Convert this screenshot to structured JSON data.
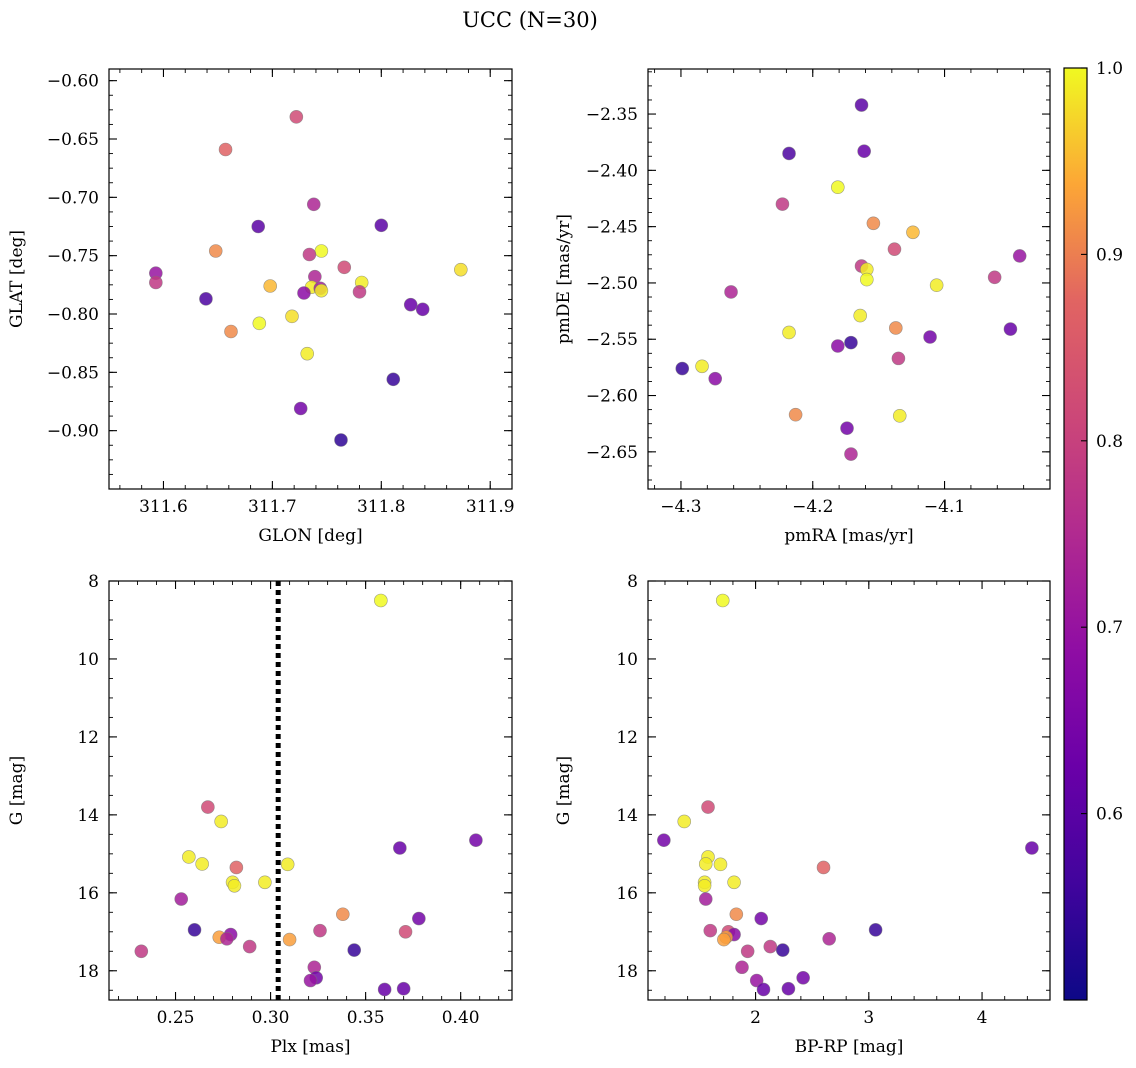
{
  "suptitle": "UCC (N=30)",
  "colorbar": {
    "colormap": "plasma",
    "range": [
      0.5,
      1.0
    ],
    "ticks": [
      "0.6",
      "0.7",
      "0.8",
      "0.9",
      "1.0"
    ]
  },
  "chart_data": [
    {
      "type": "scatter",
      "xlabel": "GLON [deg]",
      "ylabel": "GLAT [deg]",
      "xlim": [
        311.55,
        311.92
      ],
      "ylim": [
        -0.95,
        -0.59
      ],
      "y_inverted": false,
      "xticks": [
        "311.6",
        "311.7",
        "311.8",
        "311.9"
      ],
      "yticks": [
        "−0.60",
        "−0.65",
        "−0.70",
        "−0.75",
        "−0.80",
        "−0.85",
        "−0.90"
      ],
      "points": [
        {
          "x": 311.722,
          "y": -0.631,
          "c": 0.82
        },
        {
          "x": 311.657,
          "y": -0.659,
          "c": 0.87
        },
        {
          "x": 311.738,
          "y": -0.706,
          "c": 0.74
        },
        {
          "x": 311.687,
          "y": -0.725,
          "c": 0.6
        },
        {
          "x": 311.8,
          "y": -0.724,
          "c": 0.6
        },
        {
          "x": 311.648,
          "y": -0.746,
          "c": 0.91
        },
        {
          "x": 311.745,
          "y": -0.746,
          "c": 1.0
        },
        {
          "x": 311.734,
          "y": -0.749,
          "c": 0.78
        },
        {
          "x": 311.873,
          "y": -0.762,
          "c": 0.98
        },
        {
          "x": 311.766,
          "y": -0.76,
          "c": 0.82
        },
        {
          "x": 311.593,
          "y": -0.765,
          "c": 0.7
        },
        {
          "x": 311.739,
          "y": -0.768,
          "c": 0.74
        },
        {
          "x": 311.593,
          "y": -0.773,
          "c": 0.78
        },
        {
          "x": 311.782,
          "y": -0.773,
          "c": 0.99
        },
        {
          "x": 311.698,
          "y": -0.776,
          "c": 0.95
        },
        {
          "x": 311.736,
          "y": -0.777,
          "c": 0.99
        },
        {
          "x": 311.744,
          "y": -0.778,
          "c": 0.72
        },
        {
          "x": 311.745,
          "y": -0.78,
          "c": 0.99
        },
        {
          "x": 311.729,
          "y": -0.782,
          "c": 0.68
        },
        {
          "x": 311.78,
          "y": -0.781,
          "c": 0.78
        },
        {
          "x": 311.639,
          "y": -0.787,
          "c": 0.58
        },
        {
          "x": 311.827,
          "y": -0.792,
          "c": 0.62
        },
        {
          "x": 311.838,
          "y": -0.796,
          "c": 0.62
        },
        {
          "x": 311.718,
          "y": -0.802,
          "c": 0.98
        },
        {
          "x": 311.688,
          "y": -0.808,
          "c": 1.0
        },
        {
          "x": 311.662,
          "y": -0.815,
          "c": 0.91
        },
        {
          "x": 311.732,
          "y": -0.834,
          "c": 0.99
        },
        {
          "x": 311.811,
          "y": -0.856,
          "c": 0.55
        },
        {
          "x": 311.726,
          "y": -0.881,
          "c": 0.64
        },
        {
          "x": 311.763,
          "y": -0.908,
          "c": 0.54
        }
      ]
    },
    {
      "type": "scatter",
      "xlabel": "pmRA [mas/yr]",
      "ylabel": "pmDE [mas/yr]",
      "xlim": [
        -4.325,
        -4.02
      ],
      "ylim": [
        -2.683,
        -2.31
      ],
      "y_inverted": false,
      "xticks": [
        "−4.3",
        "−4.2",
        "−4.1"
      ],
      "yticks": [
        "−2.35",
        "−2.40",
        "−2.45",
        "−2.50",
        "−2.55",
        "−2.60",
        "−2.65"
      ],
      "points": [
        {
          "x": -4.163,
          "y": -2.342,
          "c": 0.6
        },
        {
          "x": -4.218,
          "y": -2.385,
          "c": 0.58
        },
        {
          "x": -4.161,
          "y": -2.383,
          "c": 0.62
        },
        {
          "x": -4.181,
          "y": -2.415,
          "c": 1.0
        },
        {
          "x": -4.223,
          "y": -2.43,
          "c": 0.78
        },
        {
          "x": -4.154,
          "y": -2.447,
          "c": 0.91
        },
        {
          "x": -4.124,
          "y": -2.455,
          "c": 0.95
        },
        {
          "x": -4.138,
          "y": -2.47,
          "c": 0.82
        },
        {
          "x": -4.043,
          "y": -2.476,
          "c": 0.7
        },
        {
          "x": -4.163,
          "y": -2.485,
          "c": 0.78
        },
        {
          "x": -4.159,
          "y": -2.488,
          "c": 0.99
        },
        {
          "x": -4.062,
          "y": -2.495,
          "c": 0.78
        },
        {
          "x": -4.159,
          "y": -2.497,
          "c": 1.0
        },
        {
          "x": -4.106,
          "y": -2.502,
          "c": 0.99
        },
        {
          "x": -4.262,
          "y": -2.508,
          "c": 0.74
        },
        {
          "x": -4.164,
          "y": -2.529,
          "c": 0.99
        },
        {
          "x": -4.137,
          "y": -2.54,
          "c": 0.91
        },
        {
          "x": -4.05,
          "y": -2.541,
          "c": 0.62
        },
        {
          "x": -4.218,
          "y": -2.544,
          "c": 0.99
        },
        {
          "x": -4.111,
          "y": -2.548,
          "c": 0.64
        },
        {
          "x": -4.171,
          "y": -2.553,
          "c": 0.55
        },
        {
          "x": -4.181,
          "y": -2.556,
          "c": 0.68
        },
        {
          "x": -4.135,
          "y": -2.567,
          "c": 0.78
        },
        {
          "x": -4.299,
          "y": -2.576,
          "c": 0.55
        },
        {
          "x": -4.284,
          "y": -2.574,
          "c": 0.99
        },
        {
          "x": -4.274,
          "y": -2.585,
          "c": 0.68
        },
        {
          "x": -4.213,
          "y": -2.617,
          "c": 0.91
        },
        {
          "x": -4.134,
          "y": -2.618,
          "c": 0.99
        },
        {
          "x": -4.174,
          "y": -2.629,
          "c": 0.64
        },
        {
          "x": -4.171,
          "y": -2.652,
          "c": 0.74
        }
      ]
    },
    {
      "type": "scatter",
      "xlabel": "Plx [mas]",
      "ylabel": "G [mag]",
      "xlim": [
        0.215,
        0.427
      ],
      "ylim": [
        18.75,
        8.0
      ],
      "y_inverted": true,
      "vline": {
        "x": 0.304,
        "style": "dotted",
        "color": "#000000"
      },
      "xticks": [
        "0.25",
        "0.30",
        "0.35",
        "0.40"
      ],
      "yticks": [
        "8",
        "10",
        "12",
        "14",
        "16",
        "18"
      ],
      "points": [
        {
          "x": 0.358,
          "y": 8.5,
          "c": 1.0
        },
        {
          "x": 0.267,
          "y": 13.8,
          "c": 0.82
        },
        {
          "x": 0.274,
          "y": 14.17,
          "c": 0.99
        },
        {
          "x": 0.408,
          "y": 14.65,
          "c": 0.64
        },
        {
          "x": 0.368,
          "y": 14.85,
          "c": 0.62
        },
        {
          "x": 0.257,
          "y": 15.08,
          "c": 0.99
        },
        {
          "x": 0.264,
          "y": 15.26,
          "c": 0.99
        },
        {
          "x": 0.309,
          "y": 15.27,
          "c": 0.99
        },
        {
          "x": 0.282,
          "y": 15.35,
          "c": 0.87
        },
        {
          "x": 0.297,
          "y": 15.73,
          "c": 0.99
        },
        {
          "x": 0.28,
          "y": 15.73,
          "c": 0.99
        },
        {
          "x": 0.281,
          "y": 15.82,
          "c": 0.99
        },
        {
          "x": 0.253,
          "y": 16.16,
          "c": 0.72
        },
        {
          "x": 0.338,
          "y": 16.55,
          "c": 0.91
        },
        {
          "x": 0.378,
          "y": 16.66,
          "c": 0.64
        },
        {
          "x": 0.26,
          "y": 16.95,
          "c": 0.55
        },
        {
          "x": 0.326,
          "y": 16.97,
          "c": 0.78
        },
        {
          "x": 0.371,
          "y": 17.0,
          "c": 0.82
        },
        {
          "x": 0.279,
          "y": 17.07,
          "c": 0.68
        },
        {
          "x": 0.273,
          "y": 17.14,
          "c": 0.93
        },
        {
          "x": 0.277,
          "y": 17.18,
          "c": 0.74
        },
        {
          "x": 0.31,
          "y": 17.2,
          "c": 0.93
        },
        {
          "x": 0.289,
          "y": 17.38,
          "c": 0.78
        },
        {
          "x": 0.344,
          "y": 17.47,
          "c": 0.55
        },
        {
          "x": 0.232,
          "y": 17.5,
          "c": 0.78
        },
        {
          "x": 0.323,
          "y": 17.91,
          "c": 0.74
        },
        {
          "x": 0.324,
          "y": 18.18,
          "c": 0.64
        },
        {
          "x": 0.321,
          "y": 18.25,
          "c": 0.7
        },
        {
          "x": 0.36,
          "y": 18.48,
          "c": 0.62
        },
        {
          "x": 0.37,
          "y": 18.46,
          "c": 0.62
        }
      ]
    },
    {
      "type": "scatter",
      "xlabel": "BP-RP [mag]",
      "ylabel": "G [mag]",
      "xlim": [
        1.05,
        4.6
      ],
      "ylim": [
        18.75,
        8.0
      ],
      "y_inverted": true,
      "xticks": [
        "2",
        "3",
        "4"
      ],
      "yticks": [
        "8",
        "10",
        "12",
        "14",
        "16",
        "18"
      ],
      "points": [
        {
          "x": 1.71,
          "y": 8.5,
          "c": 1.0
        },
        {
          "x": 1.58,
          "y": 13.8,
          "c": 0.82
        },
        {
          "x": 1.37,
          "y": 14.17,
          "c": 0.99
        },
        {
          "x": 1.19,
          "y": 14.65,
          "c": 0.64
        },
        {
          "x": 4.44,
          "y": 14.85,
          "c": 0.62
        },
        {
          "x": 1.58,
          "y": 15.08,
          "c": 0.99
        },
        {
          "x": 1.56,
          "y": 15.26,
          "c": 0.99
        },
        {
          "x": 1.69,
          "y": 15.27,
          "c": 0.99
        },
        {
          "x": 2.6,
          "y": 15.35,
          "c": 0.87
        },
        {
          "x": 1.55,
          "y": 15.73,
          "c": 0.99
        },
        {
          "x": 1.81,
          "y": 15.73,
          "c": 0.99
        },
        {
          "x": 1.55,
          "y": 15.82,
          "c": 0.99
        },
        {
          "x": 1.56,
          "y": 16.16,
          "c": 0.72
        },
        {
          "x": 1.83,
          "y": 16.55,
          "c": 0.91
        },
        {
          "x": 2.05,
          "y": 16.66,
          "c": 0.64
        },
        {
          "x": 3.06,
          "y": 16.95,
          "c": 0.55
        },
        {
          "x": 1.6,
          "y": 16.97,
          "c": 0.78
        },
        {
          "x": 1.76,
          "y": 17.0,
          "c": 0.82
        },
        {
          "x": 1.81,
          "y": 17.07,
          "c": 0.68
        },
        {
          "x": 1.74,
          "y": 17.14,
          "c": 0.93
        },
        {
          "x": 2.65,
          "y": 17.18,
          "c": 0.74
        },
        {
          "x": 1.72,
          "y": 17.2,
          "c": 0.93
        },
        {
          "x": 2.13,
          "y": 17.38,
          "c": 0.78
        },
        {
          "x": 2.24,
          "y": 17.47,
          "c": 0.55
        },
        {
          "x": 1.93,
          "y": 17.5,
          "c": 0.78
        },
        {
          "x": 1.88,
          "y": 17.91,
          "c": 0.74
        },
        {
          "x": 2.42,
          "y": 18.18,
          "c": 0.64
        },
        {
          "x": 2.01,
          "y": 18.25,
          "c": 0.7
        },
        {
          "x": 2.07,
          "y": 18.48,
          "c": 0.62
        },
        {
          "x": 2.29,
          "y": 18.46,
          "c": 0.62
        }
      ]
    }
  ]
}
